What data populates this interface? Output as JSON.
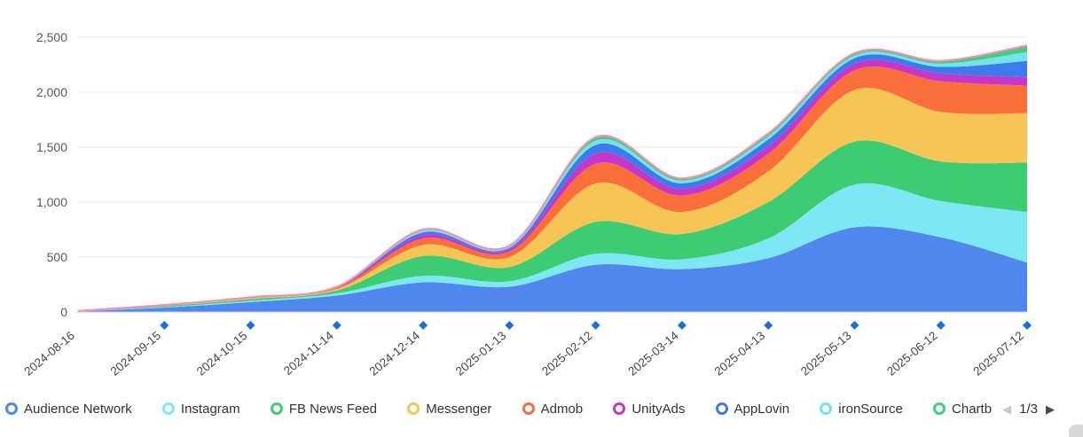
{
  "chart_data": {
    "type": "area",
    "stacked": true,
    "smooth": true,
    "title": "",
    "xlabel": "",
    "ylabel": "",
    "x": [
      "2024-08-16",
      "2024-09-15",
      "2024-10-15",
      "2024-11-14",
      "2024-12-14",
      "2025-01-13",
      "2025-02-12",
      "2025-03-14",
      "2025-04-13",
      "2025-05-13",
      "2025-06-12",
      "2025-07-12"
    ],
    "ylim": [
      0,
      2500
    ],
    "y_ticks": [
      0,
      500,
      1000,
      1500,
      2000,
      2500
    ],
    "y_tick_labels": [
      "0",
      "500",
      "1,000",
      "1,500",
      "2,000",
      "2,500"
    ],
    "grid": true,
    "legend_position": "bottom",
    "series": [
      {
        "name": "Audience Network",
        "color": "#5087EC",
        "values": [
          5,
          40,
          90,
          150,
          270,
          230,
          430,
          390,
          490,
          770,
          680,
          450
        ]
      },
      {
        "name": "Instagram",
        "color": "#7DE7F3",
        "values": [
          2,
          6,
          12,
          20,
          60,
          50,
          100,
          90,
          180,
          390,
          330,
          460
        ]
      },
      {
        "name": "FB News Feed",
        "color": "#3DCB73",
        "values": [
          2,
          8,
          15,
          25,
          180,
          130,
          290,
          230,
          330,
          390,
          360,
          450
        ]
      },
      {
        "name": "Messenger",
        "color": "#F7C556",
        "values": [
          1,
          4,
          8,
          15,
          100,
          90,
          350,
          200,
          280,
          470,
          450,
          450
        ]
      },
      {
        "name": "Admob",
        "color": "#F96E3B",
        "values": [
          0,
          2,
          4,
          8,
          60,
          50,
          180,
          150,
          160,
          180,
          280,
          250
        ]
      },
      {
        "name": "UnityAds",
        "color": "#C636C9",
        "values": [
          0,
          1,
          2,
          4,
          30,
          20,
          90,
          60,
          70,
          60,
          70,
          75
        ]
      },
      {
        "name": "AppLovin",
        "color": "#3E7BEA",
        "values": [
          0,
          1,
          2,
          4,
          25,
          15,
          80,
          50,
          60,
          50,
          60,
          150
        ]
      },
      {
        "name": "ironSource",
        "color": "#76E2EF",
        "values": [
          0,
          1,
          1,
          2,
          15,
          10,
          40,
          25,
          30,
          25,
          30,
          80
        ]
      },
      {
        "name": "Chartb",
        "color": "#44CD7B",
        "values": [
          0,
          1,
          1,
          2,
          10,
          8,
          30,
          20,
          25,
          20,
          25,
          60
        ]
      }
    ],
    "top_edge_color": "#F48FB1"
  },
  "axis": {
    "marker_shape": "diamond",
    "marker_color": "#1B6EDE",
    "x_label_color": "#454545",
    "y_label_color": "#595959",
    "grid_color": "#E8E8E8",
    "axis_line_color": "#CFCFCF"
  },
  "legend": {
    "pager": {
      "prev_icon": "left-arrow",
      "next_icon": "right-arrow",
      "text": "1/3"
    }
  }
}
